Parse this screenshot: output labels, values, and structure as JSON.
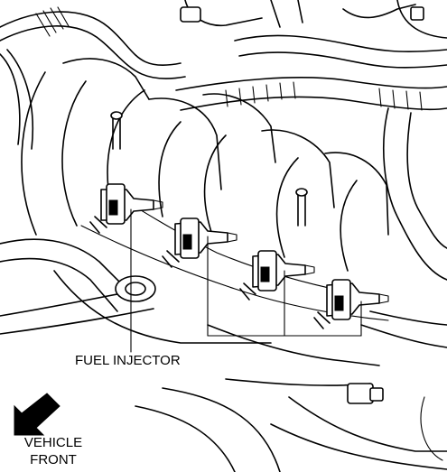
{
  "figure": {
    "callout_label": "FUEL INJECTOR",
    "direction_label_line1": "VEHICLE",
    "direction_label_line2": "FRONT",
    "direction_icon": "arrow-down-left-icon",
    "line_color": "#000000",
    "background": "#ffffff"
  }
}
